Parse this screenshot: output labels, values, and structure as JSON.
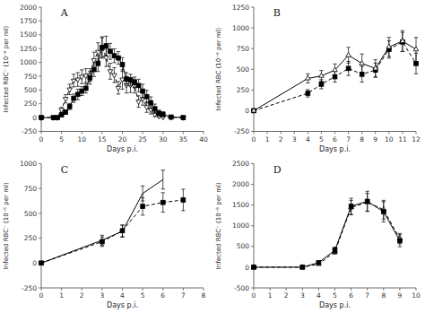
{
  "chart_data": [
    {
      "type": "line",
      "annotations": [
        "A"
      ],
      "x_label": "Days p.i.",
      "y_label": "Infected RBC⁻ (10⁻⁶ per ml)",
      "grid": false,
      "xlim": [
        0,
        40
      ],
      "xticks": [
        0,
        5,
        10,
        15,
        20,
        25,
        30,
        35,
        40
      ],
      "ylim": [
        -250,
        2000
      ],
      "yticks": [
        -250,
        0,
        250,
        500,
        750,
        1000,
        1250,
        1500,
        1750,
        2000
      ],
      "series": [
        {
          "color": "#000000",
          "marker": "square",
          "line_style": "solid",
          "x": [
            0,
            3,
            4,
            5,
            6,
            7,
            8,
            9,
            10,
            11,
            12,
            13,
            14,
            15,
            16,
            17,
            18,
            19,
            20,
            21,
            22,
            23,
            24,
            25,
            26,
            27,
            28,
            29,
            30,
            32,
            35
          ],
          "values": [
            0,
            0,
            0,
            50,
            100,
            200,
            350,
            420,
            480,
            530,
            720,
            870,
            980,
            1270,
            1300,
            1200,
            1120,
            1080,
            960,
            700,
            680,
            640,
            580,
            480,
            380,
            270,
            160,
            80,
            60,
            10,
            0
          ],
          "errors": [
            5,
            5,
            5,
            25,
            40,
            55,
            75,
            95,
            80,
            85,
            115,
            125,
            145,
            195,
            175,
            145,
            125,
            115,
            125,
            115,
            105,
            95,
            115,
            125,
            115,
            105,
            85,
            55,
            45,
            10,
            5
          ]
        },
        {
          "color": "#000000",
          "marker": "triangle-down-open",
          "line_style": "dashed",
          "x": [
            0,
            3,
            4,
            5,
            6,
            7,
            8,
            9,
            10,
            11,
            12,
            13,
            14,
            15,
            16,
            17,
            18,
            19,
            20,
            21,
            22,
            23,
            24,
            25,
            26,
            27,
            28,
            29,
            30,
            32,
            35
          ],
          "values": [
            0,
            0,
            0,
            140,
            340,
            510,
            670,
            690,
            740,
            760,
            770,
            1040,
            1190,
            1270,
            1090,
            840,
            770,
            540,
            690,
            590,
            590,
            570,
            290,
            340,
            190,
            140,
            60,
            25,
            8,
            4,
            0
          ],
          "errors": [
            5,
            5,
            5,
            45,
            75,
            95,
            115,
            125,
            125,
            125,
            115,
            145,
            165,
            175,
            165,
            145,
            135,
            115,
            175,
            145,
            135,
            125,
            105,
            115,
            95,
            75,
            45,
            18,
            8,
            4,
            5
          ]
        }
      ]
    },
    {
      "type": "line",
      "annotations": [
        "B"
      ],
      "x_label": "Days p.i.",
      "y_label": "Infected RBC  (10⁻⁶ per ml)",
      "grid": false,
      "xlim": [
        0,
        12
      ],
      "xticks": [
        0,
        1,
        2,
        3,
        4,
        5,
        6,
        7,
        8,
        9,
        10,
        11,
        12
      ],
      "ylim": [
        -250,
        1250
      ],
      "yticks": [
        -250,
        0,
        250,
        500,
        750,
        1000,
        1250
      ],
      "series": [
        {
          "color": "#000000",
          "marker": "triangle-up-open",
          "line_style": "solid",
          "x": [
            0,
            4,
            5,
            6,
            7,
            8,
            9,
            10,
            11,
            12
          ],
          "values": [
            0,
            390,
            420,
            490,
            670,
            570,
            510,
            770,
            840,
            740
          ],
          "errors": [
            5,
            55,
            65,
            75,
            95,
            115,
            105,
            115,
            125,
            145
          ]
        },
        {
          "color": "#000000",
          "marker": "square",
          "line_style": "dashed",
          "x": [
            0,
            4,
            5,
            6,
            7,
            8,
            9,
            10,
            11,
            12
          ],
          "values": [
            0,
            210,
            320,
            410,
            510,
            440,
            490,
            740,
            830,
            570
          ],
          "errors": [
            5,
            45,
            55,
            65,
            85,
            95,
            85,
            105,
            115,
            125
          ]
        }
      ]
    },
    {
      "type": "line",
      "annotations": [
        "C"
      ],
      "x_label": "Days p.i.",
      "y_label": "Infected RBC⁻ (10⁻⁶ per ml)",
      "grid": false,
      "xlim": [
        0,
        8
      ],
      "xticks": [
        0,
        1,
        2,
        3,
        4,
        5,
        6,
        7,
        8
      ],
      "ylim": [
        -250,
        1000
      ],
      "yticks": [
        -250,
        0,
        250,
        500,
        750,
        1000
      ],
      "series": [
        {
          "color": "#000000",
          "marker": "none",
          "line_style": "solid",
          "x": [
            0,
            3,
            4,
            5,
            6
          ],
          "values": [
            0,
            230,
            320,
            700,
            840
          ],
          "errors": [
            5,
            50,
            60,
            75,
            95
          ]
        },
        {
          "color": "#000000",
          "marker": "square",
          "line_style": "dashed",
          "x": [
            0,
            3,
            4,
            5,
            6,
            7
          ],
          "values": [
            0,
            215,
            325,
            570,
            610,
            635
          ],
          "errors": [
            5,
            48,
            58,
            88,
            98,
            108
          ]
        }
      ]
    },
    {
      "type": "line",
      "annotations": [
        "D"
      ],
      "x_label": "Days p.i.",
      "y_label": "Infected RBC⁻ (10⁻⁶ per ml)",
      "grid": false,
      "xlim": [
        0,
        10
      ],
      "xticks": [
        0,
        1,
        2,
        3,
        4,
        5,
        6,
        7,
        8,
        9,
        10
      ],
      "ylim": [
        -500,
        2500
      ],
      "yticks": [
        -500,
        0,
        500,
        1000,
        1500,
        2000,
        2500
      ],
      "series": [
        {
          "color": "#000000",
          "marker": "square",
          "line_style": "solid",
          "x": [
            0,
            3,
            4,
            5,
            6,
            7,
            8,
            9
          ],
          "values": [
            0,
            0,
            110,
            410,
            1470,
            1590,
            1340,
            640
          ],
          "errors": [
            5,
            5,
            28,
            75,
            195,
            245,
            245,
            145
          ]
        },
        {
          "color": "#000000",
          "marker": "triangle-up-open",
          "line_style": "dashed",
          "x": [
            0,
            3,
            4,
            5,
            6,
            7,
            8,
            9
          ],
          "values": [
            0,
            0,
            75,
            370,
            1440,
            1570,
            1390,
            690
          ],
          "errors": [
            5,
            5,
            18,
            55,
            175,
            215,
            225,
            125
          ]
        }
      ]
    }
  ]
}
